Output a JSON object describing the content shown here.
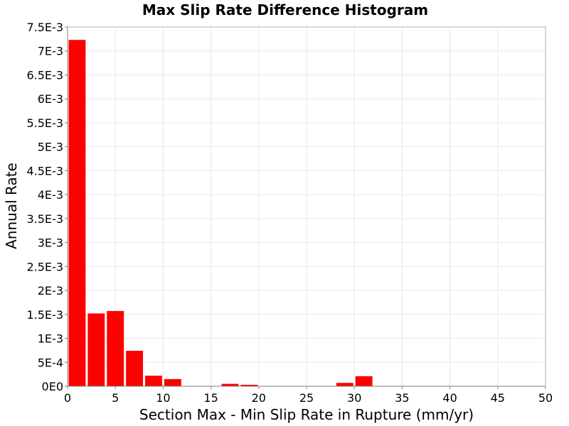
{
  "chart_data": {
    "type": "bar",
    "title": "Max Slip Rate Difference Histogram",
    "xlabel": "Section Max - Min Slip Rate in Rupture (mm/yr)",
    "ylabel": "Annual Rate",
    "xlim": [
      0,
      50
    ],
    "ylim": [
      0,
      0.0075
    ],
    "grid": true,
    "bar_color": "#ff0000",
    "bin_width": 2,
    "x_ticks": [
      {
        "value": 0,
        "label": "0"
      },
      {
        "value": 5,
        "label": "5"
      },
      {
        "value": 10,
        "label": "10"
      },
      {
        "value": 15,
        "label": "15"
      },
      {
        "value": 20,
        "label": "20"
      },
      {
        "value": 25,
        "label": "25"
      },
      {
        "value": 30,
        "label": "30"
      },
      {
        "value": 35,
        "label": "35"
      },
      {
        "value": 40,
        "label": "40"
      },
      {
        "value": 45,
        "label": "45"
      },
      {
        "value": 50,
        "label": "50"
      }
    ],
    "y_ticks": [
      {
        "value": 0,
        "label": "0E0"
      },
      {
        "value": 0.0005,
        "label": "5E-4"
      },
      {
        "value": 0.001,
        "label": "1E-3"
      },
      {
        "value": 0.0015,
        "label": "1.5E-3"
      },
      {
        "value": 0.002,
        "label": "2E-3"
      },
      {
        "value": 0.0025,
        "label": "2.5E-3"
      },
      {
        "value": 0.003,
        "label": "3E-3"
      },
      {
        "value": 0.0035,
        "label": "3.5E-3"
      },
      {
        "value": 0.004,
        "label": "4E-3"
      },
      {
        "value": 0.0045,
        "label": "4.5E-3"
      },
      {
        "value": 0.005,
        "label": "5E-3"
      },
      {
        "value": 0.0055,
        "label": "5.5E-3"
      },
      {
        "value": 0.006,
        "label": "6E-3"
      },
      {
        "value": 0.0065,
        "label": "6.5E-3"
      },
      {
        "value": 0.007,
        "label": "7E-3"
      },
      {
        "value": 0.0075,
        "label": "7.5E-3"
      }
    ],
    "bins": [
      {
        "center": 1,
        "value": 0.00723
      },
      {
        "center": 3,
        "value": 0.00152
      },
      {
        "center": 5,
        "value": 0.00157
      },
      {
        "center": 7,
        "value": 0.00074
      },
      {
        "center": 9,
        "value": 0.00022
      },
      {
        "center": 11,
        "value": 0.00015
      },
      {
        "center": 13,
        "value": 0.0
      },
      {
        "center": 15,
        "value": 0.0
      },
      {
        "center": 17,
        "value": 5e-05
      },
      {
        "center": 19,
        "value": 3e-05
      },
      {
        "center": 21,
        "value": 0.0
      },
      {
        "center": 23,
        "value": 0.0
      },
      {
        "center": 25,
        "value": 0.0
      },
      {
        "center": 27,
        "value": 0.0
      },
      {
        "center": 29,
        "value": 7e-05
      },
      {
        "center": 31,
        "value": 0.00021
      },
      {
        "center": 33,
        "value": 0.0
      },
      {
        "center": 35,
        "value": 0.0
      },
      {
        "center": 37,
        "value": 0.0
      },
      {
        "center": 39,
        "value": 0.0
      },
      {
        "center": 41,
        "value": 0.0
      },
      {
        "center": 43,
        "value": 0.0
      },
      {
        "center": 45,
        "value": 0.0
      },
      {
        "center": 47,
        "value": 0.0
      },
      {
        "center": 49,
        "value": 0.0
      }
    ]
  }
}
